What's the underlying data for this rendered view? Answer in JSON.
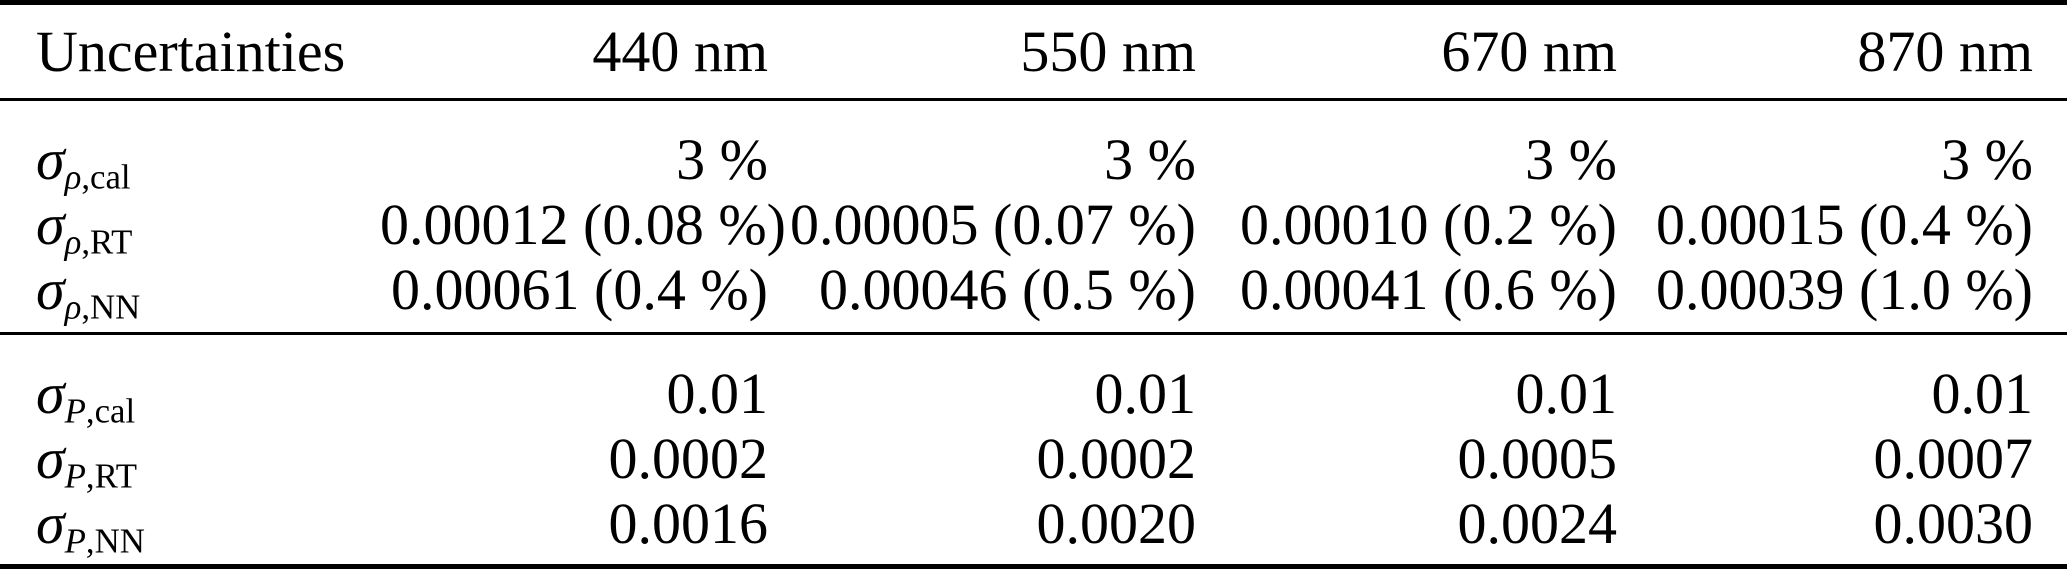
{
  "table": {
    "header_label": "Uncertainties",
    "wavelengths": [
      "440 nm",
      "550 nm",
      "670 nm",
      "870 nm"
    ],
    "sections": [
      {
        "name": "reflectance-uncertainties",
        "rows": [
          {
            "sym": "σ",
            "sub_i": "ρ",
            "sub_r": ",cal",
            "values": [
              "3 %",
              "3 %",
              "3 %",
              "3 %"
            ]
          },
          {
            "sym": "σ",
            "sub_i": "ρ",
            "sub_r": ",RT",
            "values": [
              "0.00012 (0.08 %)",
              "0.00005 (0.07 %)",
              "0.00010 (0.2 %)",
              "0.00015 (0.4 %)"
            ]
          },
          {
            "sym": "σ",
            "sub_i": "ρ",
            "sub_r": ",NN",
            "values": [
              "0.00061 (0.4 %)",
              "0.00046 (0.5 %)",
              "0.00041 (0.6 %)",
              "0.00039 (1.0 %)"
            ]
          }
        ]
      },
      {
        "name": "polarization-uncertainties",
        "rows": [
          {
            "sym": "σ",
            "sub_i": "P",
            "sub_r": ",cal",
            "values": [
              "0.01",
              "0.01",
              "0.01",
              "0.01"
            ]
          },
          {
            "sym": "σ",
            "sub_i": "P",
            "sub_r": ",RT",
            "values": [
              "0.0002",
              "0.0002",
              "0.0005",
              "0.0007"
            ]
          },
          {
            "sym": "σ",
            "sub_i": "P",
            "sub_r": ",NN",
            "values": [
              "0.0016",
              "0.0020",
              "0.0024",
              "0.0030"
            ]
          }
        ]
      }
    ]
  },
  "chart_data": {
    "type": "table",
    "columns": [
      "Uncertainties",
      "440 nm",
      "550 nm",
      "670 nm",
      "870 nm"
    ],
    "rows": [
      [
        "σ_ρ,cal",
        "3 %",
        "3 %",
        "3 %",
        "3 %"
      ],
      [
        "σ_ρ,RT",
        "0.00012 (0.08 %)",
        "0.00005 (0.07 %)",
        "0.00010 (0.2 %)",
        "0.00015 (0.4 %)"
      ],
      [
        "σ_ρ,NN",
        "0.00061 (0.4 %)",
        "0.00046 (0.5 %)",
        "0.00041 (0.6 %)",
        "0.00039 (1.0 %)"
      ],
      [
        "σ_P,cal",
        "0.01",
        "0.01",
        "0.01",
        "0.01"
      ],
      [
        "σ_P,RT",
        "0.0002",
        "0.0002",
        "0.0005",
        "0.0007"
      ],
      [
        "σ_P,NN",
        "0.0016",
        "0.0020",
        "0.0024",
        "0.0030"
      ]
    ]
  },
  "colors": {
    "text": "#000000",
    "background": "#ffffff",
    "rule": "#000000"
  }
}
